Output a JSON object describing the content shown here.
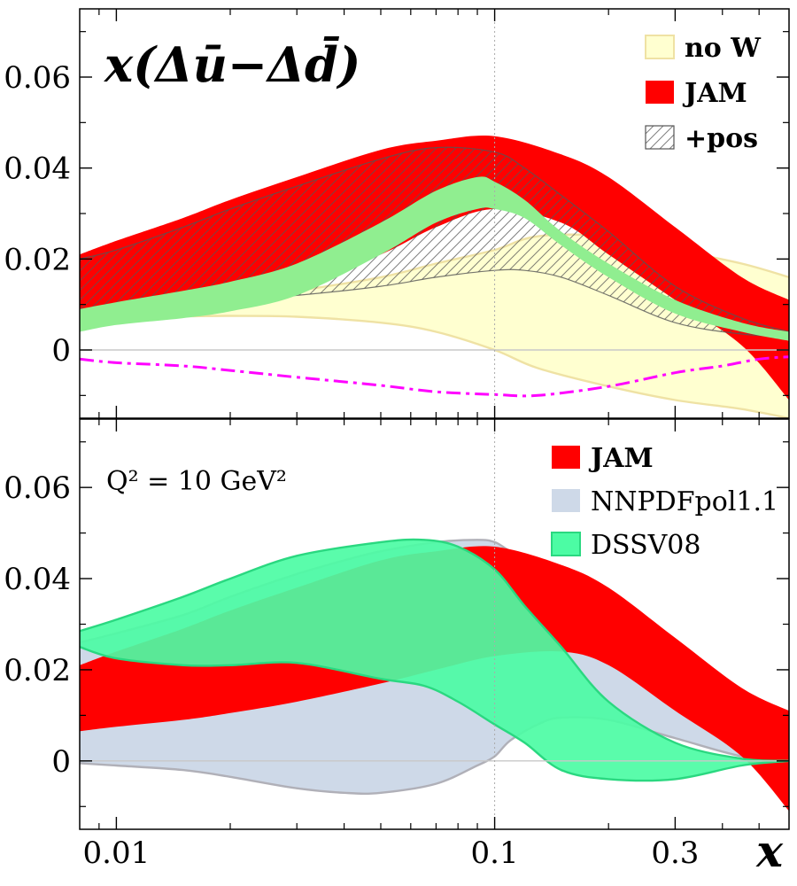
{
  "chart_data": {
    "type": "area",
    "x_scale": "log",
    "xlim": [
      0.008,
      0.6
    ],
    "xlabel": "x",
    "x_ticks": [
      {
        "value": 0.01,
        "label": "0.01"
      },
      {
        "value": 0.1,
        "label": "0.1"
      },
      {
        "value": 0.3,
        "label": "0.3"
      }
    ],
    "vertical_reference_line_x": 0.1,
    "panels": [
      {
        "id": "top",
        "title": "x(Δū−Δd̄)",
        "ylim": [
          -0.015,
          0.075
        ],
        "y_ticks": [
          {
            "value": 0,
            "label": "0"
          },
          {
            "value": 0.02,
            "label": "0.02"
          },
          {
            "value": 0.04,
            "label": "0.04"
          },
          {
            "value": 0.06,
            "label": "0.06"
          }
        ],
        "legend_position": "top-right",
        "legend": [
          {
            "label": "no W",
            "color": "#ffffd0",
            "style": "fill",
            "bold": true
          },
          {
            "label": "JAM",
            "color": "#ff0000",
            "style": "fill",
            "bold": true
          },
          {
            "label": "+pos",
            "color": "#555555",
            "style": "hatch",
            "bold": true
          }
        ],
        "series": [
          {
            "name": "no W",
            "style": "band",
            "color": "#ffffd0",
            "edge": "#efe2a4",
            "x": [
              0.008,
              0.01,
              0.015,
              0.02,
              0.03,
              0.05,
              0.07,
              0.1,
              0.13,
              0.2,
              0.3,
              0.45,
              0.6
            ],
            "lower": [
              0.007,
              0.0072,
              0.0074,
              0.0075,
              0.0073,
              0.006,
              0.004,
              0.0,
              -0.004,
              -0.008,
              -0.011,
              -0.013,
              -0.015
            ],
            "upper": [
              0.008,
              0.0085,
              0.01,
              0.011,
              0.013,
              0.016,
              0.019,
              0.022,
              0.025,
              0.025,
              0.022,
              0.019,
              0.016
            ]
          },
          {
            "name": "JAM",
            "style": "band",
            "color": "#ff0000",
            "x": [
              0.008,
              0.01,
              0.015,
              0.02,
              0.03,
              0.05,
              0.07,
              0.1,
              0.15,
              0.2,
              0.3,
              0.45,
              0.6
            ],
            "lower": [
              0.008,
              0.008,
              0.0085,
              0.01,
              0.014,
              0.021,
              0.027,
              0.031,
              0.028,
              0.021,
              0.011,
              0.001,
              -0.011
            ],
            "upper": [
              0.021,
              0.024,
              0.029,
              0.033,
              0.038,
              0.044,
              0.046,
              0.047,
              0.043,
              0.038,
              0.027,
              0.016,
              0.011
            ]
          },
          {
            "name": "+pos",
            "style": "hatch_band",
            "color": "#555555",
            "x": [
              0.008,
              0.01,
              0.015,
              0.02,
              0.03,
              0.05,
              0.07,
              0.1,
              0.12,
              0.15,
              0.2,
              0.3,
              0.45,
              0.6
            ],
            "lower": [
              0.0085,
              0.009,
              0.01,
              0.011,
              0.012,
              0.014,
              0.016,
              0.0175,
              0.0175,
              0.016,
              0.012,
              0.006,
              0.0035,
              0.003
            ],
            "upper": [
              0.02,
              0.022,
              0.027,
              0.031,
              0.036,
              0.042,
              0.0445,
              0.0435,
              0.04,
              0.034,
              0.026,
              0.014,
              0.007,
              0.004
            ]
          },
          {
            "name": "",
            "style": "band",
            "color": "#90ee90",
            "x": [
              0.008,
              0.01,
              0.015,
              0.02,
              0.03,
              0.05,
              0.07,
              0.09,
              0.1,
              0.12,
              0.15,
              0.2,
              0.3,
              0.45,
              0.6
            ],
            "lower": [
              0.004,
              0.0055,
              0.007,
              0.0085,
              0.012,
              0.021,
              0.028,
              0.031,
              0.031,
              0.029,
              0.023,
              0.016,
              0.008,
              0.004,
              0.002
            ],
            "upper": [
              0.009,
              0.0105,
              0.013,
              0.015,
              0.019,
              0.028,
              0.035,
              0.038,
              0.037,
              0.033,
              0.026,
              0.019,
              0.011,
              0.006,
              0.004
            ]
          },
          {
            "name": "",
            "style": "dashdot_line",
            "color": "#ff00ff",
            "x": [
              0.008,
              0.01,
              0.015,
              0.02,
              0.03,
              0.05,
              0.07,
              0.1,
              0.13,
              0.2,
              0.3,
              0.4,
              0.5,
              0.6
            ],
            "y": [
              -0.002,
              -0.0028,
              -0.0035,
              -0.0045,
              -0.006,
              -0.0078,
              -0.0092,
              -0.0098,
              -0.01,
              -0.008,
              -0.005,
              -0.0035,
              -0.002,
              -0.0015
            ]
          }
        ]
      },
      {
        "id": "bottom",
        "annotation": "Q² = 10 GeV²",
        "ylim": [
          -0.015,
          0.075
        ],
        "y_ticks": [
          {
            "value": 0,
            "label": "0"
          },
          {
            "value": 0.02,
            "label": "0.02"
          },
          {
            "value": 0.04,
            "label": "0.04"
          },
          {
            "value": 0.06,
            "label": "0.06"
          }
        ],
        "legend_position": "top-right",
        "legend": [
          {
            "label": "JAM",
            "color": "#ff0000",
            "style": "fill",
            "bold": true
          },
          {
            "label": "NNPDFpol1.1",
            "color": "#ced9e8",
            "style": "fill",
            "bold": false
          },
          {
            "label": "DSSV08",
            "color": "#4cfca4",
            "style": "fill_edge",
            "bold": false
          }
        ],
        "series": [
          {
            "name": "NNPDFpol1.1",
            "style": "band_edged",
            "color": "#ced9e8",
            "edge": "#b0b0b8",
            "x": [
              0.008,
              0.01,
              0.015,
              0.02,
              0.03,
              0.04,
              0.05,
              0.07,
              0.09,
              0.1,
              0.11,
              0.13,
              0.15,
              0.2,
              0.3,
              0.45,
              0.6
            ],
            "lower": [
              -0.0005,
              -0.001,
              -0.002,
              -0.0035,
              -0.006,
              -0.007,
              -0.007,
              -0.005,
              -0.001,
              0.001,
              0.0045,
              0.008,
              0.0095,
              0.009,
              0.005,
              0.001,
              0.0
            ],
            "upper": [
              0.026,
              0.028,
              0.032,
              0.036,
              0.041,
              0.044,
              0.046,
              0.048,
              0.0485,
              0.048,
              0.046,
              0.043,
              0.039,
              0.034,
              0.022,
              0.008,
              0.003
            ]
          },
          {
            "name": "JAM",
            "style": "band",
            "color": "#ff0000",
            "x": [
              0.008,
              0.01,
              0.015,
              0.02,
              0.03,
              0.05,
              0.07,
              0.1,
              0.15,
              0.2,
              0.3,
              0.45,
              0.6
            ],
            "lower": [
              0.0065,
              0.0075,
              0.009,
              0.0105,
              0.013,
              0.017,
              0.02,
              0.023,
              0.024,
              0.021,
              0.011,
              0.001,
              -0.011
            ],
            "upper": [
              0.021,
              0.024,
              0.029,
              0.033,
              0.038,
              0.044,
              0.046,
              0.047,
              0.043,
              0.038,
              0.027,
              0.016,
              0.011
            ]
          },
          {
            "name": "DSSV08",
            "style": "band_edged",
            "color": "#4cfca4",
            "edge": "#2ad880",
            "x": [
              0.008,
              0.01,
              0.015,
              0.02,
              0.03,
              0.05,
              0.065,
              0.08,
              0.1,
              0.12,
              0.15,
              0.2,
              0.3,
              0.45,
              0.6
            ],
            "lower": [
              0.025,
              0.0225,
              0.021,
              0.021,
              0.0215,
              0.018,
              0.0165,
              0.013,
              0.008,
              0.004,
              -0.002,
              -0.004,
              -0.004,
              -0.001,
              0.0
            ],
            "upper": [
              0.0285,
              0.031,
              0.036,
              0.04,
              0.045,
              0.048,
              0.0485,
              0.047,
              0.042,
              0.034,
              0.025,
              0.013,
              0.004,
              0.0005,
              0.0
            ]
          }
        ]
      }
    ]
  }
}
